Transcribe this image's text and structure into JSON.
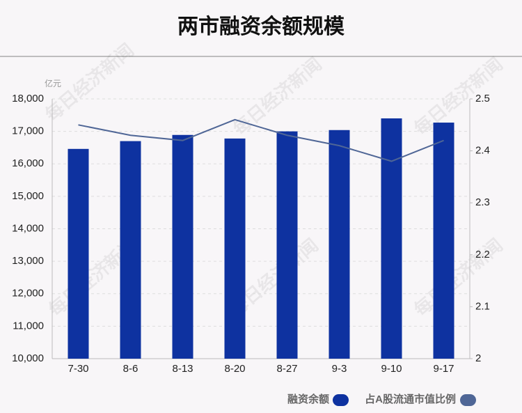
{
  "chart_data": {
    "type": "bar-line",
    "title": "两市融资余额规模",
    "y_unit": "亿元",
    "watermark": "每日经济新闻",
    "categories": [
      "7-30",
      "8-6",
      "8-13",
      "8-20",
      "8-27",
      "9-3",
      "9-10",
      "9-17"
    ],
    "series": [
      {
        "name": "融资余额",
        "type": "bar",
        "color": "#0e32a0",
        "values": [
          16460,
          16700,
          16890,
          16780,
          17000,
          17040,
          17400,
          17270
        ]
      },
      {
        "name": "占A股流通市值比例",
        "type": "line",
        "axis": "y2",
        "color": "#4f6696",
        "values": [
          2.45,
          2.43,
          2.42,
          2.46,
          2.43,
          2.41,
          2.38,
          2.42
        ]
      }
    ],
    "ylim": [
      10000,
      18000
    ],
    "yticks": [
      {
        "value": 10000,
        "label": "10,000"
      },
      {
        "value": 11000,
        "label": "11,000"
      },
      {
        "value": 12000,
        "label": "12,000"
      },
      {
        "value": 13000,
        "label": "13,000"
      },
      {
        "value": 14000,
        "label": "14,000"
      },
      {
        "value": 15000,
        "label": "15,000"
      },
      {
        "value": 16000,
        "label": "16,000"
      },
      {
        "value": 17000,
        "label": "17,000"
      },
      {
        "value": 18000,
        "label": "18,000"
      }
    ],
    "y2lim": [
      2,
      2.5
    ],
    "y2ticks": [
      2,
      2.1,
      2.2,
      2.3,
      2.4,
      2.5
    ],
    "grid": true
  }
}
